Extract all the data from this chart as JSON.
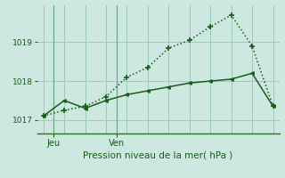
{
  "title": "",
  "xlabel": "Pression niveau de la mer( hPa )",
  "background_color": "#cce8e0",
  "grid_color": "#99ccbb",
  "line_dark_color": "#1a5c1a",
  "line_light_color": "#2e7d2e",
  "line1_x": [
    0,
    1,
    2,
    3,
    4,
    5,
    6,
    7,
    8,
    9,
    10,
    11
  ],
  "line1_y": [
    1017.1,
    1017.5,
    1017.3,
    1017.5,
    1017.65,
    1017.75,
    1017.85,
    1017.95,
    1018.0,
    1018.05,
    1018.2,
    1017.35
  ],
  "line2_x": [
    0,
    1,
    2,
    3,
    4,
    5,
    6,
    7,
    8,
    9,
    10,
    11
  ],
  "line2_y": [
    1017.1,
    1017.25,
    1017.35,
    1017.6,
    1018.1,
    1018.35,
    1018.85,
    1019.05,
    1019.4,
    1019.7,
    1018.9,
    1017.35
  ],
  "yticks": [
    1017,
    1018,
    1019
  ],
  "ylim": [
    1016.65,
    1019.95
  ],
  "xlim": [
    -0.3,
    11.3
  ],
  "xtick_positions": [
    0.5,
    3.5
  ],
  "xtick_labels": [
    "Jeu",
    "Ven"
  ],
  "vline_x": [
    0.5,
    3.5
  ],
  "grid_x": [
    0,
    1,
    2,
    3,
    4,
    5,
    6,
    7,
    8,
    9,
    10,
    11
  ]
}
